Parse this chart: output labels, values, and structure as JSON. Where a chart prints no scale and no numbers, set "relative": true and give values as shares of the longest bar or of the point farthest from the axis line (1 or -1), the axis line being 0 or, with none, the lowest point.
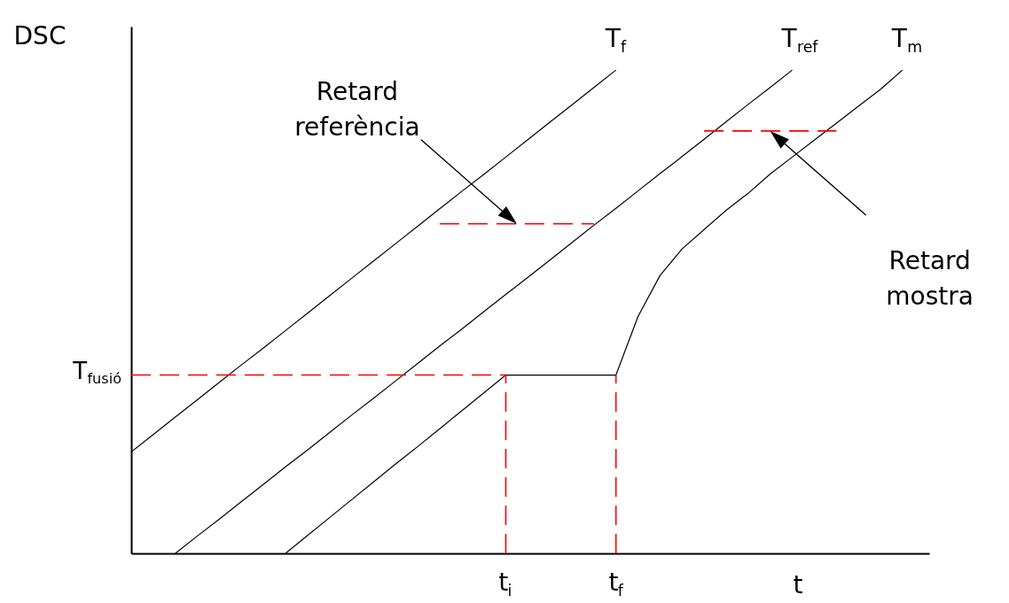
{
  "chart_data": {
    "type": "line",
    "relative": true,
    "xlabel": "t",
    "ylabel": "DSC",
    "marker": "none",
    "categories": [
      null,
      null,
      null,
      null,
      null,
      null,
      null,
      null,
      null,
      null,
      null,
      null,
      null,
      null,
      null,
      null,
      null,
      "t$_{i}$",
      null,
      null,
      null,
      null,
      "t$_{f}$",
      null,
      null,
      null,
      null,
      null,
      null,
      null,
      null,
      null,
      null,
      null,
      null,
      null,
      null
    ],
    "series": [
      {
        "name": "T$_{f}$",
        "color": "#000000",
        "line_style": "solid",
        "values": [
          0.21,
          0.246,
          0.282,
          0.318,
          0.354,
          0.39,
          0.425,
          0.461,
          0.497,
          0.533,
          0.569,
          0.605,
          0.641,
          0.677,
          0.713,
          0.749,
          0.784,
          0.82,
          0.856,
          0.892,
          0.928,
          0.964,
          1.0,
          null,
          null,
          null,
          null,
          null,
          null,
          null,
          null,
          null,
          null,
          null,
          null,
          null,
          null
        ]
      },
      {
        "name": "T$_{ref}$",
        "color": "#000000",
        "line_style": "solid",
        "values": [
          null,
          null,
          0,
          0.036,
          0.071,
          0.107,
          0.143,
          0.179,
          0.214,
          0.25,
          0.286,
          0.321,
          0.357,
          0.393,
          0.429,
          0.464,
          0.5,
          0.536,
          0.571,
          0.607,
          0.643,
          0.679,
          0.714,
          0.75,
          0.786,
          0.821,
          0.857,
          0.893,
          0.929,
          0.964,
          1.0,
          null,
          null,
          null,
          null,
          null,
          null
        ]
      },
      {
        "name": "T$_{m}$",
        "color": "#000000",
        "line_style": "solid",
        "values": [
          null,
          null,
          null,
          null,
          null,
          null,
          null,
          0,
          0.037,
          0.074,
          0.111,
          0.148,
          0.185,
          0.221,
          0.258,
          0.295,
          0.332,
          0.369,
          0.369,
          0.369,
          0.369,
          0.369,
          0.369,
          0.49,
          0.575,
          0.63,
          0.67,
          0.71,
          0.745,
          0.785,
          0.82,
          0.855,
          0.89,
          0.925,
          0.96,
          1.0,
          null
        ]
      },
      {
        "color": "#ff0000",
        "line_style": "dashed",
        "values": [
          null,
          null,
          null,
          null,
          null,
          null,
          null,
          null,
          null,
          null,
          null,
          null,
          null,
          null,
          0.682,
          0.682,
          0.682,
          0.682,
          0.682,
          0.682,
          0.682,
          0.682,
          null,
          null,
          null,
          null,
          null,
          null,
          null,
          null,
          null,
          null,
          null,
          null,
          null,
          null,
          null
        ]
      },
      {
        "color": "#ff0000",
        "line_style": "dashed",
        "values": [
          null,
          null,
          null,
          null,
          null,
          null,
          null,
          null,
          null,
          null,
          null,
          null,
          null,
          null,
          null,
          null,
          null,
          null,
          null,
          null,
          null,
          null,
          null,
          null,
          null,
          null,
          0.874,
          0.874,
          0.874,
          0.874,
          0.874,
          0.874,
          0.874,
          null,
          null,
          null,
          null
        ]
      }
    ],
    "ref_lines": [
      {
        "axis": "y",
        "value": 0.369,
        "label": "T$_{fusió}$",
        "color": "#ff0000",
        "line_style": "dashed"
      },
      {
        "axis": "x",
        "value": "t$_{i}$",
        "color": "#ff0000",
        "line_style": "dashed"
      },
      {
        "axis": "x",
        "value": "t$_{f}$",
        "color": "#ff0000",
        "line_style": "dashed"
      }
    ],
    "annotations": [
      "Retard referència",
      "Retard mostra"
    ]
  }
}
